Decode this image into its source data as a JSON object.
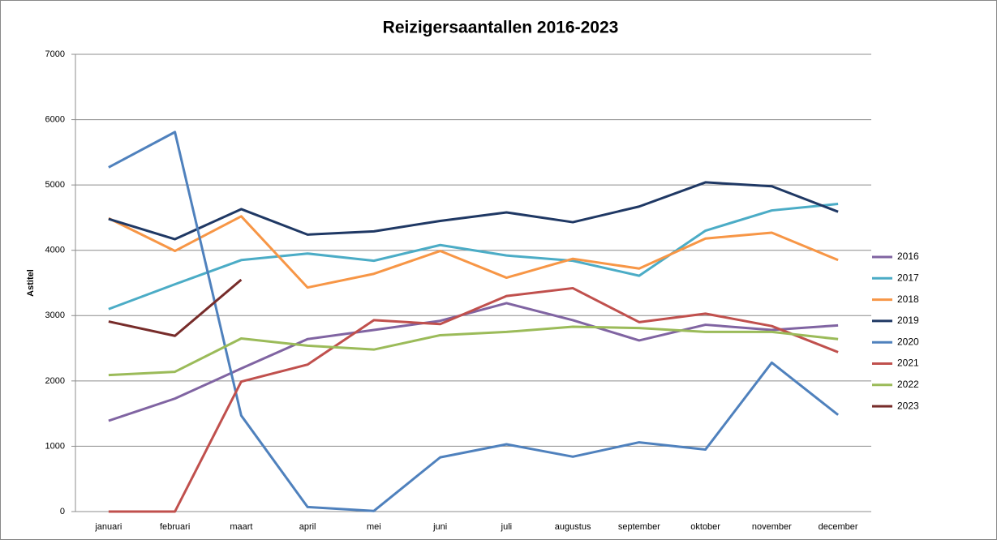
{
  "chart_data": {
    "type": "line",
    "title": "Reizigersaantallen 2016-2023",
    "y_label": "Astitel",
    "categories": [
      "januari",
      "februari",
      "maart",
      "april",
      "mei",
      "juni",
      "juli",
      "augustus",
      "september",
      "oktober",
      "november",
      "december"
    ],
    "series": [
      {
        "name": "2016",
        "color": "#8064a2",
        "values": [
          1390,
          1730,
          2190,
          2640,
          2780,
          2920,
          3190,
          2930,
          2620,
          2860,
          2780,
          2850
        ]
      },
      {
        "name": "2017",
        "color": "#4bacc6",
        "values": [
          3100,
          3480,
          3850,
          3950,
          3840,
          4080,
          3920,
          3840,
          3610,
          4300,
          4610,
          4710
        ]
      },
      {
        "name": "2018",
        "color": "#f79646",
        "values": [
          4490,
          3990,
          4520,
          3430,
          3640,
          3990,
          3580,
          3870,
          3720,
          4180,
          4270,
          3850
        ]
      },
      {
        "name": "2019",
        "color": "#1f3864",
        "values": [
          4480,
          4170,
          4630,
          4240,
          4290,
          4450,
          4580,
          4430,
          4670,
          5040,
          4980,
          4590
        ]
      },
      {
        "name": "2020",
        "color": "#4f81bd",
        "values": [
          5270,
          5810,
          1470,
          70,
          10,
          830,
          1030,
          840,
          1060,
          950,
          2280,
          1480
        ]
      },
      {
        "name": "2021",
        "color": "#c0504d",
        "values": [
          0,
          0,
          1990,
          2250,
          2930,
          2870,
          3300,
          3420,
          2900,
          3030,
          2840,
          2440
        ]
      },
      {
        "name": "2022",
        "color": "#9bbb59",
        "values": [
          2090,
          2140,
          2650,
          2540,
          2480,
          2700,
          2750,
          2830,
          2810,
          2750,
          2750,
          2640
        ]
      },
      {
        "name": "2023",
        "color": "#772c2a",
        "values": [
          2910,
          2690,
          3550,
          null,
          null,
          null,
          null,
          null,
          null,
          null,
          null,
          null
        ]
      }
    ],
    "ylim": [
      0,
      7000
    ],
    "yticks": [
      0,
      1000,
      2000,
      3000,
      4000,
      5000,
      6000,
      7000
    ],
    "grid": true,
    "legend": "right"
  }
}
